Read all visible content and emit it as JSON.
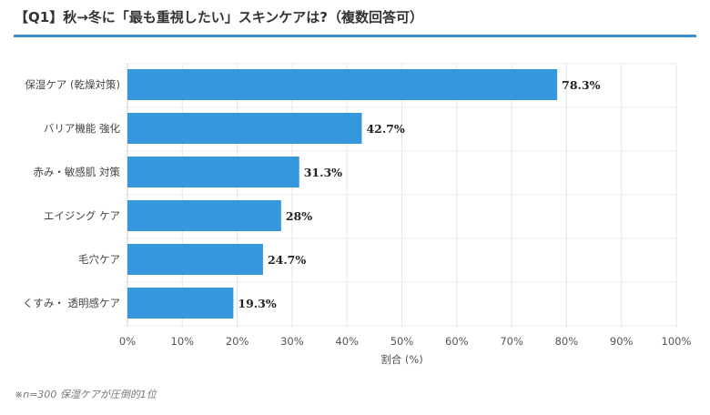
{
  "chart_data": {
    "type": "bar",
    "orientation": "horizontal",
    "title": "【Q1】秋→冬に「最も重視したい」スキンケアは?（複数回答可）",
    "categories": [
      "保湿ケア (乾燥対策)",
      "バリア機能 強化",
      "赤み・敏感肌 対策",
      "エイジング ケア",
      "毛穴ケア",
      "くすみ・ 透明感ケア"
    ],
    "values": [
      78.3,
      42.7,
      31.3,
      28,
      24.7,
      19.3
    ],
    "value_labels": [
      "78.3%",
      "42.7%",
      "31.3%",
      "28%",
      "24.7%",
      "19.3%"
    ],
    "xlabel": "割合 (%)",
    "ylabel": "",
    "xlim": [
      0,
      100
    ],
    "xticks": [
      "0%",
      "10%",
      "20%",
      "30%",
      "40%",
      "50%",
      "60%",
      "70%",
      "80%",
      "90%",
      "100%"
    ],
    "grid": true,
    "bar_color": "#3597dc",
    "note": "※n=300 保湿ケアが圧倒的1位"
  },
  "accent_color": "#3a8fd0"
}
